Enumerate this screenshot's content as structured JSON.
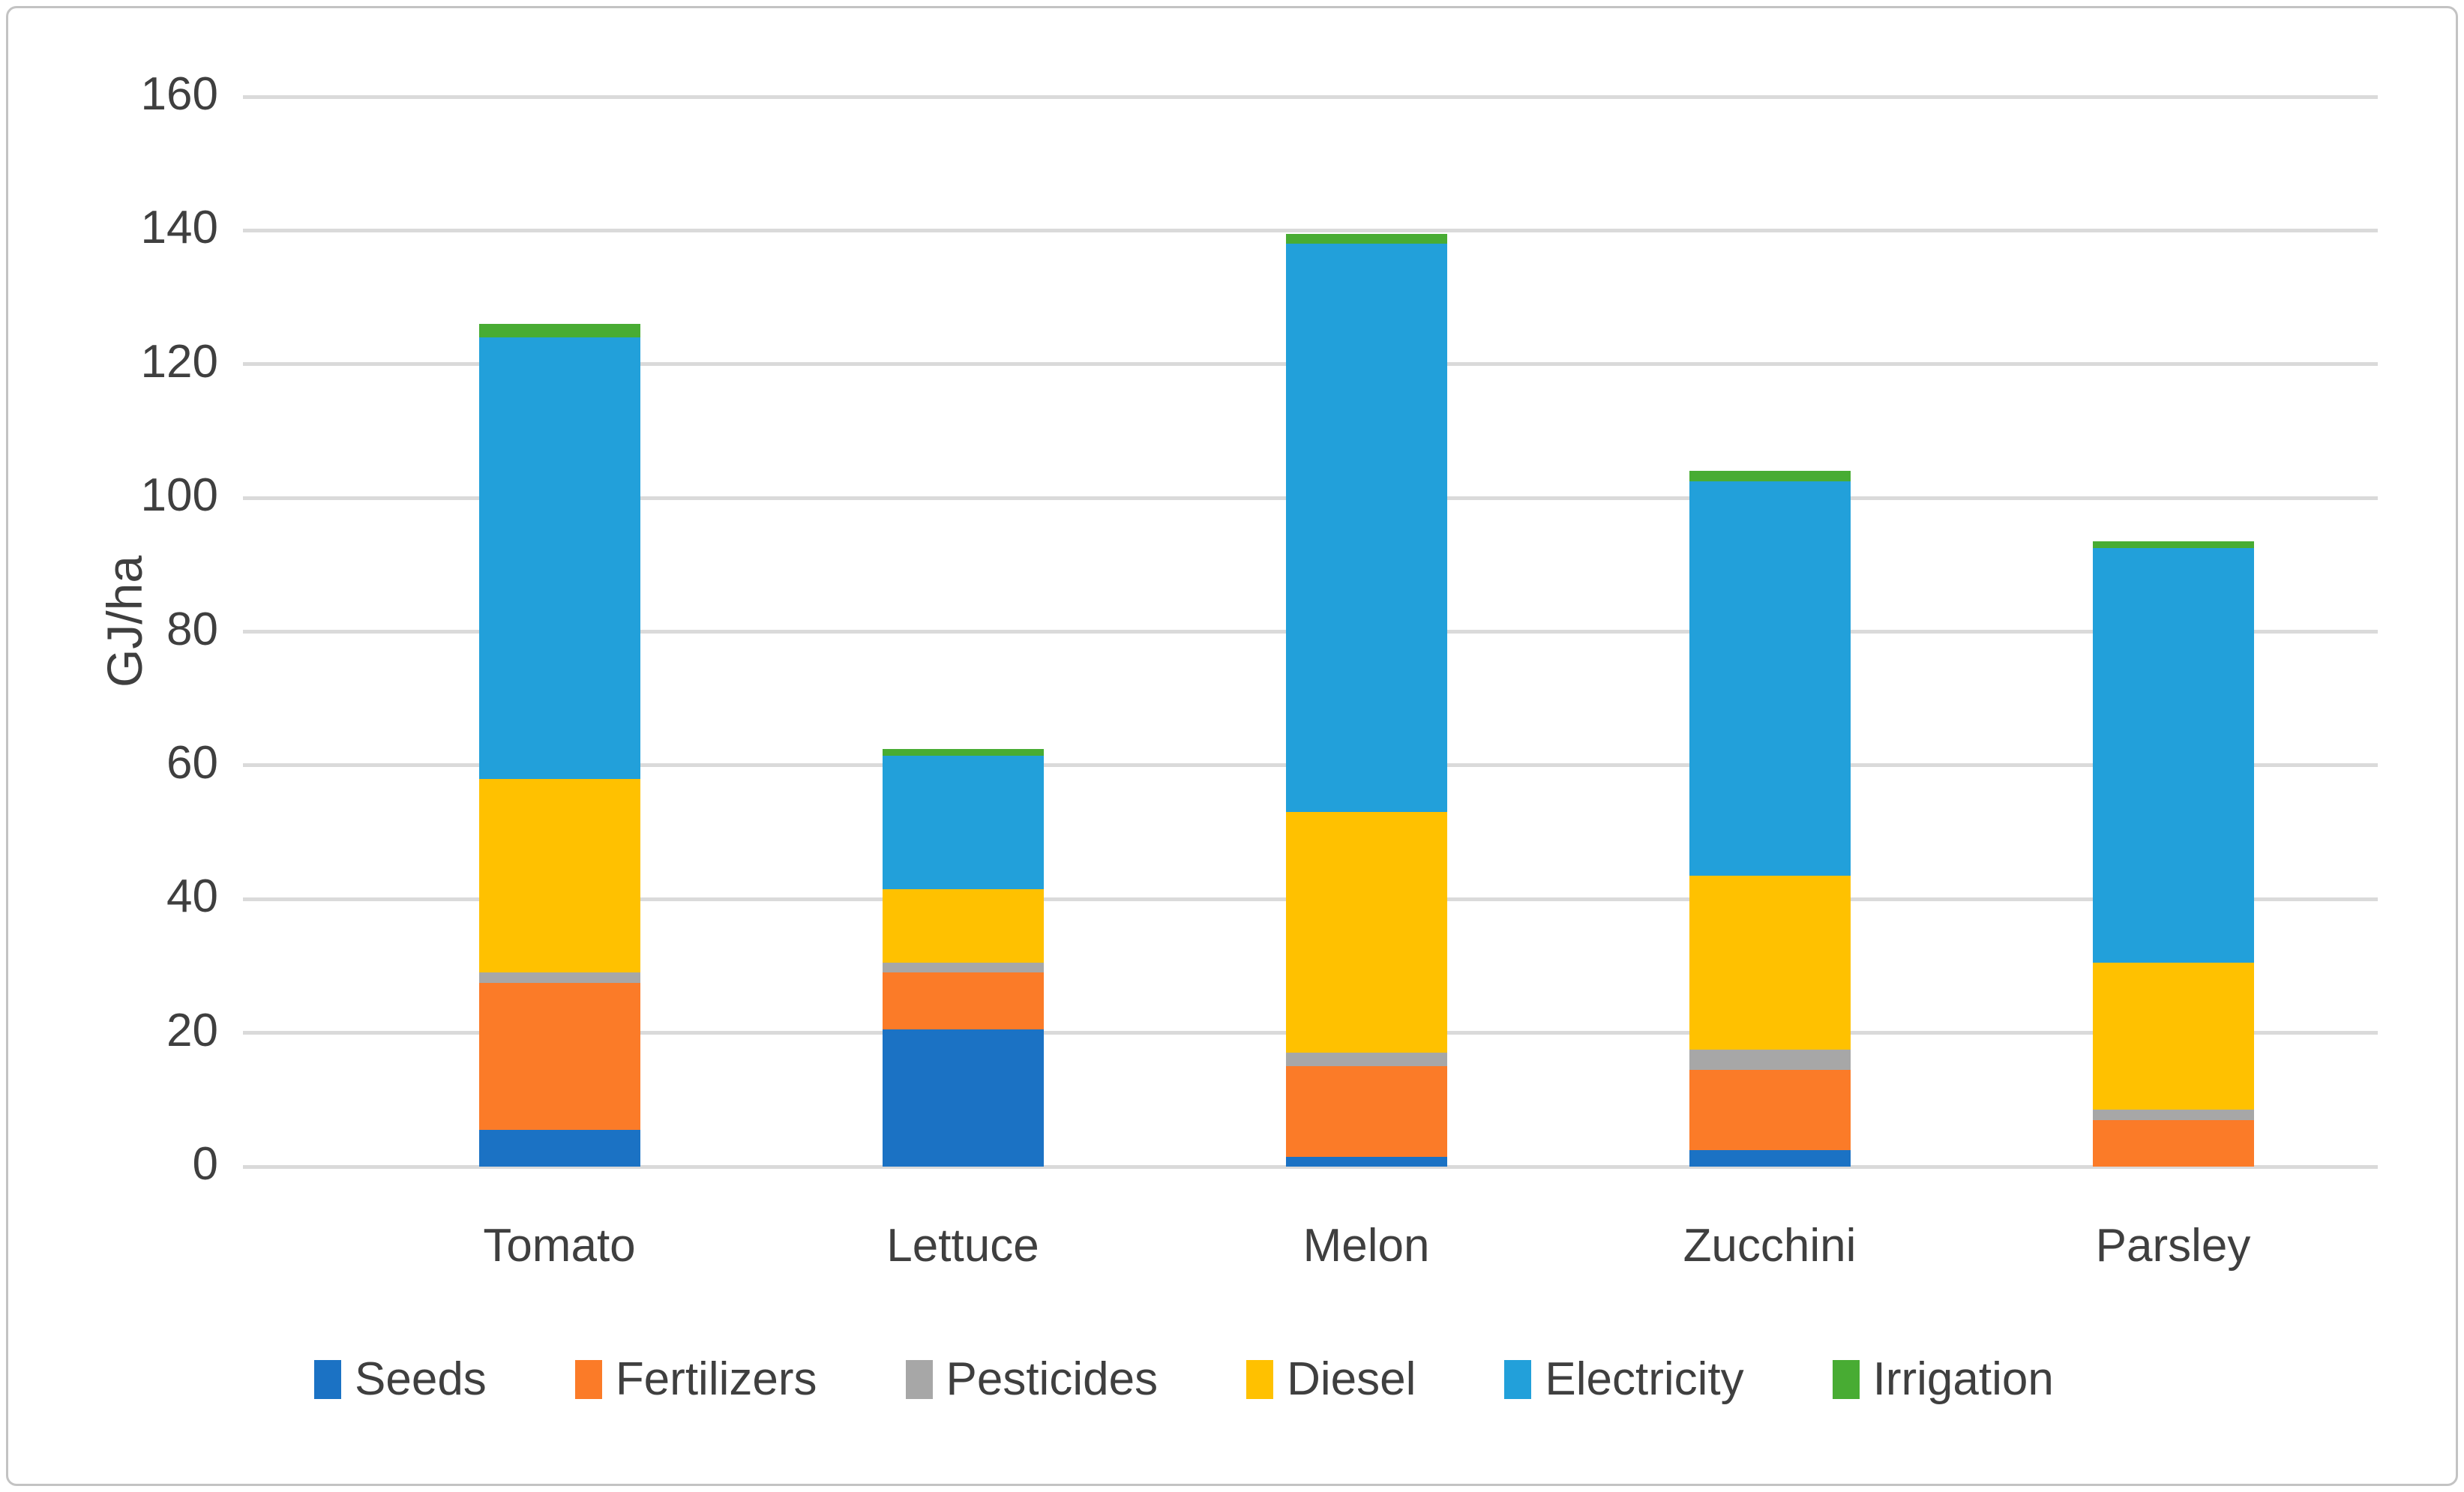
{
  "chart_data": {
    "type": "bar",
    "stacked": true,
    "title": "",
    "categories": [
      "Tomato",
      "Lettuce",
      "Melon",
      "Zucchini",
      "Parsley"
    ],
    "series": [
      {
        "name": "Seeds",
        "color": "#1B72C4",
        "values": [
          5.5,
          20.5,
          1.5,
          2.5,
          0
        ]
      },
      {
        "name": "Fertilizers",
        "color": "#FB7B28",
        "values": [
          22,
          8.5,
          13.5,
          12,
          7
        ]
      },
      {
        "name": "Pesticides",
        "color": "#A7A7A7",
        "values": [
          1.5,
          1.5,
          2,
          3,
          1.5
        ]
      },
      {
        "name": "Diesel",
        "color": "#FFC100",
        "values": [
          29,
          11,
          36,
          26,
          22
        ]
      },
      {
        "name": "Electricity",
        "color": "#22A0DA",
        "values": [
          66,
          20,
          85,
          59,
          62
        ]
      },
      {
        "name": "Irrigation",
        "color": "#48AC33",
        "values": [
          2,
          1,
          1.5,
          1.5,
          1
        ]
      }
    ],
    "totals": [
      126,
      62.5,
      139.5,
      104,
      93.5
    ],
    "xlabel": "",
    "ylabel": "GJ/ha",
    "ylim": [
      0,
      160
    ],
    "yticks": [
      0,
      20,
      40,
      60,
      80,
      100,
      120,
      140,
      160
    ],
    "grid": true,
    "legend_position": "bottom",
    "legend_entries": [
      "Seeds",
      "Fertilizers",
      "Pesticides",
      "Diesel",
      "Electricity",
      "Irrigation"
    ],
    "gridline_color": "#DADADA",
    "text_color": "#3F3F3F",
    "background_color": "#FFFFFF",
    "border_color": "#C3C3C3"
  }
}
